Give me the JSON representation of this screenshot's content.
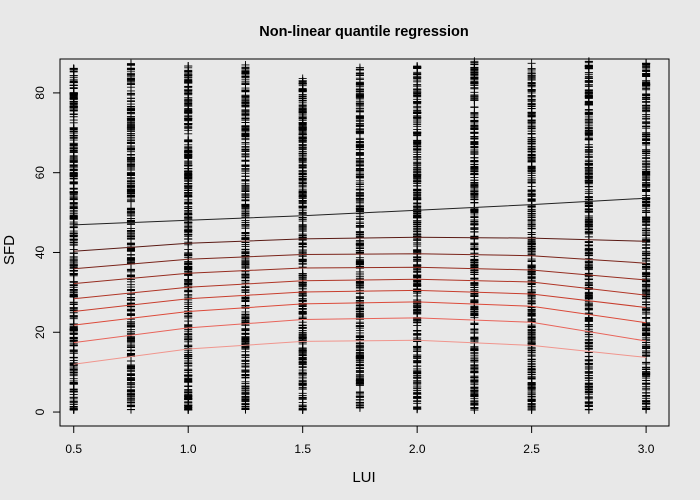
{
  "chart_data": {
    "type": "scatter",
    "title": "Non-linear quantile regression",
    "xlabel": "LUI",
    "ylabel": "SFD",
    "xlim": [
      0.44,
      3.1
    ],
    "ylim": [
      -3.5,
      88.5
    ],
    "x_ticks": [
      {
        "value": 0.5,
        "label": "0.5"
      },
      {
        "value": 1.0,
        "label": "1.0"
      },
      {
        "value": 1.5,
        "label": "1.5"
      },
      {
        "value": 2.0,
        "label": "2.0"
      },
      {
        "value": 2.5,
        "label": "2.5"
      },
      {
        "value": 3.0,
        "label": "3.0"
      }
    ],
    "y_ticks": [
      {
        "value": 0,
        "label": "0"
      },
      {
        "value": 20,
        "label": "20"
      },
      {
        "value": 40,
        "label": "40"
      },
      {
        "value": 60,
        "label": "60"
      },
      {
        "value": 80,
        "label": "80"
      }
    ],
    "grid": false,
    "legend": false,
    "point_marker": "+",
    "point_color": "#000000",
    "point_columns": [
      {
        "x": 0.5,
        "ymin": 0.5,
        "ymax": 86.5
      },
      {
        "x": 0.75,
        "ymin": 0.5,
        "ymax": 87.5
      },
      {
        "x": 1.0,
        "ymin": 0.5,
        "ymax": 88
      },
      {
        "x": 1.25,
        "ymin": 0.5,
        "ymax": 87
      },
      {
        "x": 1.5,
        "ymin": 0.5,
        "ymax": 84
      },
      {
        "x": 1.75,
        "ymin": 0.5,
        "ymax": 87
      },
      {
        "x": 2.0,
        "ymin": 0.5,
        "ymax": 87
      },
      {
        "x": 2.25,
        "ymin": 0.5,
        "ymax": 88
      },
      {
        "x": 2.5,
        "ymin": 0.5,
        "ymax": 88
      },
      {
        "x": 2.75,
        "ymin": 0.5,
        "ymax": 88
      },
      {
        "x": 3.0,
        "ymin": 0.5,
        "ymax": 87.5
      }
    ],
    "series": [
      {
        "color": "#222222",
        "x": [
          0.5,
          1.0,
          1.5,
          2.0,
          2.5,
          3.0
        ],
        "values": [
          46.9,
          48.1,
          49.2,
          50.6,
          52.0,
          53.6
        ]
      },
      {
        "color": "#5a1a14",
        "x": [
          0.5,
          1.0,
          1.5,
          2.0,
          2.5,
          3.0
        ],
        "values": [
          40.3,
          42.3,
          43.4,
          43.8,
          43.6,
          42.8
        ]
      },
      {
        "color": "#7a241a",
        "x": [
          0.5,
          1.0,
          1.5,
          2.0,
          2.5,
          3.0
        ],
        "values": [
          35.9,
          38.3,
          39.5,
          39.7,
          39.2,
          37.3
        ]
      },
      {
        "color": "#962d20",
        "x": [
          0.5,
          1.0,
          1.5,
          2.0,
          2.5,
          3.0
        ],
        "values": [
          32.2,
          34.8,
          36.1,
          36.3,
          35.6,
          33.1
        ]
      },
      {
        "color": "#b03526",
        "x": [
          0.5,
          1.0,
          1.5,
          2.0,
          2.5,
          3.0
        ],
        "values": [
          28.4,
          31.3,
          32.9,
          33.3,
          32.6,
          29.3
        ]
      },
      {
        "color": "#c83e2e",
        "x": [
          0.5,
          1.0,
          1.5,
          2.0,
          2.5,
          3.0
        ],
        "values": [
          25.2,
          28.4,
          30.1,
          30.5,
          29.6,
          26.2
        ]
      },
      {
        "color": "#dc4a3a",
        "x": [
          0.5,
          1.0,
          1.5,
          2.0,
          2.5,
          3.0
        ],
        "values": [
          21.8,
          25.2,
          27.1,
          27.6,
          26.5,
          22.4
        ]
      },
      {
        "color": "#e8645a",
        "x": [
          0.5,
          1.0,
          1.5,
          2.0,
          2.5,
          3.0
        ],
        "values": [
          17.4,
          21.1,
          23.2,
          23.6,
          22.5,
          17.8
        ]
      },
      {
        "color": "#f0958d",
        "x": [
          0.5,
          1.0,
          1.5,
          2.0,
          2.5,
          3.0
        ],
        "values": [
          12.0,
          15.8,
          17.7,
          18.0,
          16.7,
          13.7
        ]
      }
    ]
  }
}
